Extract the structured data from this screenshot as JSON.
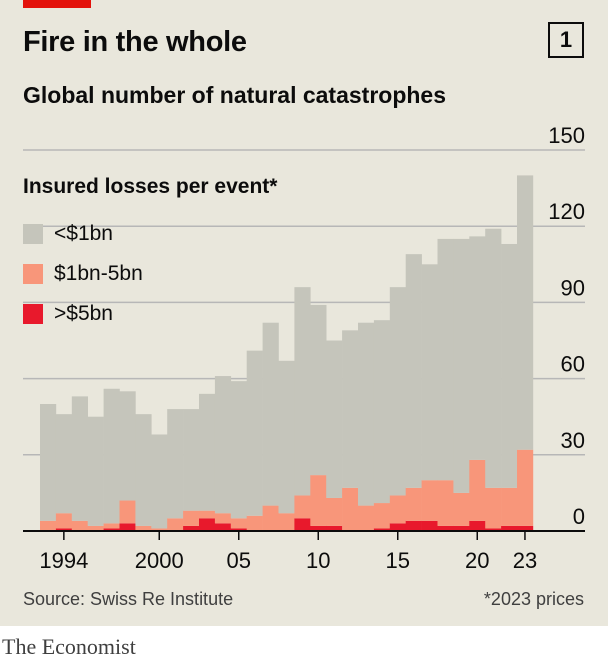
{
  "header": {
    "title": "Fire in the whole",
    "chart_number": "1",
    "subtitle": "Global number of natural catastrophes"
  },
  "legend": {
    "title": "Insured losses per event*",
    "items": [
      {
        "label": "<$1bn",
        "color": "#c5c5bb"
      },
      {
        "label": "$1bn-5bn",
        "color": "#f8967a"
      },
      {
        "label": ">$5bn",
        "color": "#e8192c"
      }
    ]
  },
  "footer": {
    "source": "Source: Swiss Re Institute",
    "note": "*2023 prices",
    "brand": "The Economist"
  },
  "colors": {
    "background": "#e9e7dc",
    "accent": "#e3120b",
    "grid": "#b7b7b7",
    "axis": "#0c0c0c"
  },
  "chart_data": {
    "type": "bar",
    "stacked": true,
    "title": "Global number of natural catastrophes",
    "ylim": [
      0,
      150
    ],
    "yticks": [
      0,
      30,
      60,
      90,
      120,
      150
    ],
    "ytick_labels": [
      "0",
      "30",
      "60",
      "90",
      "120",
      "150"
    ],
    "y_axis_side": "right",
    "grid": true,
    "categories": [
      1993,
      1994,
      1995,
      1996,
      1997,
      1998,
      1999,
      2000,
      2001,
      2002,
      2003,
      2004,
      2005,
      2006,
      2007,
      2008,
      2009,
      2010,
      2011,
      2012,
      2013,
      2014,
      2015,
      2016,
      2017,
      2018,
      2019,
      2020,
      2021,
      2022,
      2023
    ],
    "xtick_labels": [
      {
        "x": 1994,
        "label": "1994"
      },
      {
        "x": 2000,
        "label": "2000"
      },
      {
        "x": 2005,
        "label": "05"
      },
      {
        "x": 2010,
        "label": "10"
      },
      {
        "x": 2015,
        "label": "15"
      },
      {
        "x": 2020,
        "label": "20"
      },
      {
        "x": 2023,
        "label": "23"
      }
    ],
    "legend_position": "top-left",
    "series": [
      {
        "name": ">$5bn",
        "color": "#e8192c",
        "values": [
          0,
          1,
          0,
          0,
          1,
          3,
          0,
          0,
          0,
          2,
          5,
          3,
          1,
          0,
          0,
          0,
          5,
          2,
          2,
          0,
          0,
          1,
          3,
          4,
          4,
          2,
          2,
          4,
          1,
          2,
          2
        ]
      },
      {
        "name": "$1bn-5bn",
        "color": "#f8967a",
        "values": [
          4,
          6,
          4,
          2,
          2,
          9,
          2,
          1,
          5,
          6,
          3,
          4,
          4,
          6,
          10,
          7,
          9,
          20,
          11,
          17,
          10,
          10,
          11,
          13,
          16,
          18,
          13,
          24,
          16,
          15,
          30
        ]
      },
      {
        "name": "<$1bn",
        "color": "#c5c5bb",
        "values": [
          46,
          39,
          49,
          43,
          53,
          43,
          44,
          37,
          43,
          40,
          46,
          54,
          54,
          65,
          72,
          60,
          82,
          67,
          62,
          62,
          72,
          72,
          82,
          92,
          85,
          95,
          100,
          88,
          102,
          96,
          108
        ]
      }
    ]
  }
}
